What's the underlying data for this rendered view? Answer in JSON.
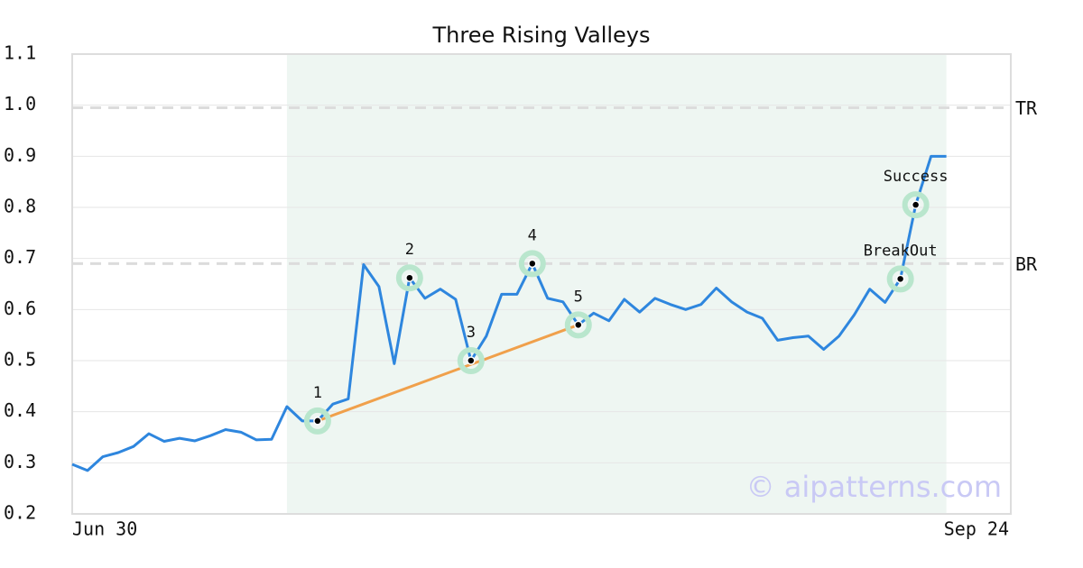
{
  "chart_data": {
    "type": "line",
    "title": "Three Rising Valleys",
    "x": [
      0,
      1,
      2,
      3,
      4,
      5,
      6,
      7,
      8,
      9,
      10,
      11,
      12,
      13,
      14,
      15,
      16,
      17,
      18,
      19,
      20,
      21,
      22,
      23,
      24,
      25,
      26,
      27,
      28,
      29,
      30,
      31,
      32,
      33,
      34,
      35,
      36,
      37,
      38,
      39,
      40,
      41,
      42,
      43,
      44,
      45,
      46,
      47,
      48,
      49,
      50,
      51,
      52,
      53,
      54,
      55,
      56,
      57
    ],
    "series": [
      {
        "color": "#2e86de",
        "values": [
          0.297,
          0.285,
          0.312,
          0.32,
          0.332,
          0.357,
          0.342,
          0.348,
          0.343,
          0.353,
          0.365,
          0.36,
          0.345,
          0.346,
          0.41,
          0.382,
          0.382,
          0.415,
          0.425,
          0.688,
          0.645,
          0.494,
          0.662,
          0.622,
          0.64,
          0.62,
          0.5,
          0.548,
          0.63,
          0.63,
          0.69,
          0.622,
          0.615,
          0.57,
          0.593,
          0.578,
          0.62,
          0.595,
          0.622,
          0.61,
          0.6,
          0.61,
          0.642,
          0.615,
          0.595,
          0.583,
          0.54,
          0.545,
          0.548,
          0.522,
          0.548,
          0.59,
          0.64,
          0.614,
          0.66,
          0.805,
          0.9,
          0.9
        ]
      }
    ],
    "xlim": [
      0,
      61.2
    ],
    "xticks": [
      {
        "value": 0,
        "label": "Jun 30"
      },
      {
        "value": 61.2,
        "label": "Sep 24"
      }
    ],
    "ylim": [
      0.2,
      1.1
    ],
    "yticks": [
      0.2,
      0.3,
      0.4,
      0.5,
      0.6,
      0.7,
      0.8,
      0.9,
      {
        "value": 1,
        "label": "1.0"
      },
      1.1
    ],
    "grid": true,
    "highlight": {
      "x": [
        14,
        57
      ],
      "color": "#eef6f2"
    },
    "levels": [
      {
        "label": "TR",
        "value": 0.995
      },
      {
        "label": "BR",
        "value": 0.69
      }
    ],
    "trendline": {
      "color": "#f0a04b",
      "x": [
        16,
        33
      ],
      "values": [
        0.382,
        0.57
      ]
    },
    "points": [
      {
        "label": "1",
        "x": 16,
        "y": 0.382
      },
      {
        "label": "2",
        "x": 22,
        "y": 0.662
      },
      {
        "label": "3",
        "x": 26,
        "y": 0.5
      },
      {
        "label": "4",
        "x": 30,
        "y": 0.69
      },
      {
        "label": "5",
        "x": 33,
        "y": 0.57
      },
      {
        "label": "BreakOut",
        "x": 54,
        "y": 0.66
      },
      {
        "label": "Success",
        "x": 55,
        "y": 0.805
      }
    ],
    "watermark": "© aipatterns.com"
  }
}
